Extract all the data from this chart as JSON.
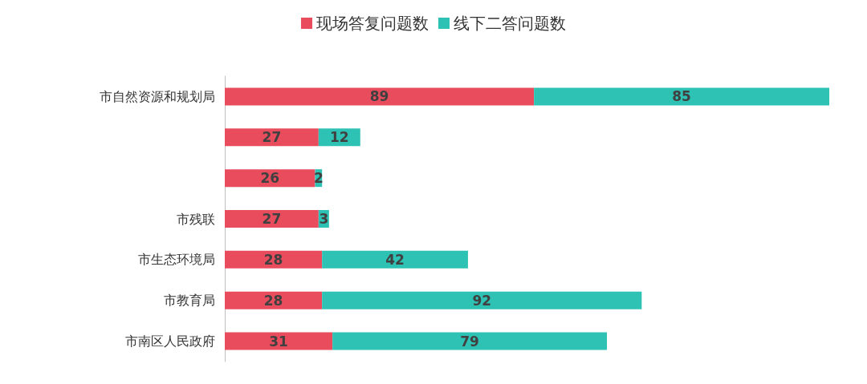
{
  "chart_data": {
    "type": "bar",
    "orientation": "horizontal",
    "stacked": true,
    "data_labels": true,
    "legend": "top",
    "categories": [
      "市自然资源和规划局",
      null,
      null,
      "市残联",
      "市生态环境局",
      "市教育局",
      "市南区人民政府"
    ],
    "series": [
      {
        "name": "现场答复问题数",
        "color": "#e84c5d",
        "values": [
          89,
          27,
          26,
          27,
          28,
          28,
          31
        ]
      },
      {
        "name": "线下二答问题数",
        "color": "#2ec2b5",
        "values": [
          85,
          12,
          2,
          3,
          42,
          92,
          79
        ]
      }
    ]
  }
}
